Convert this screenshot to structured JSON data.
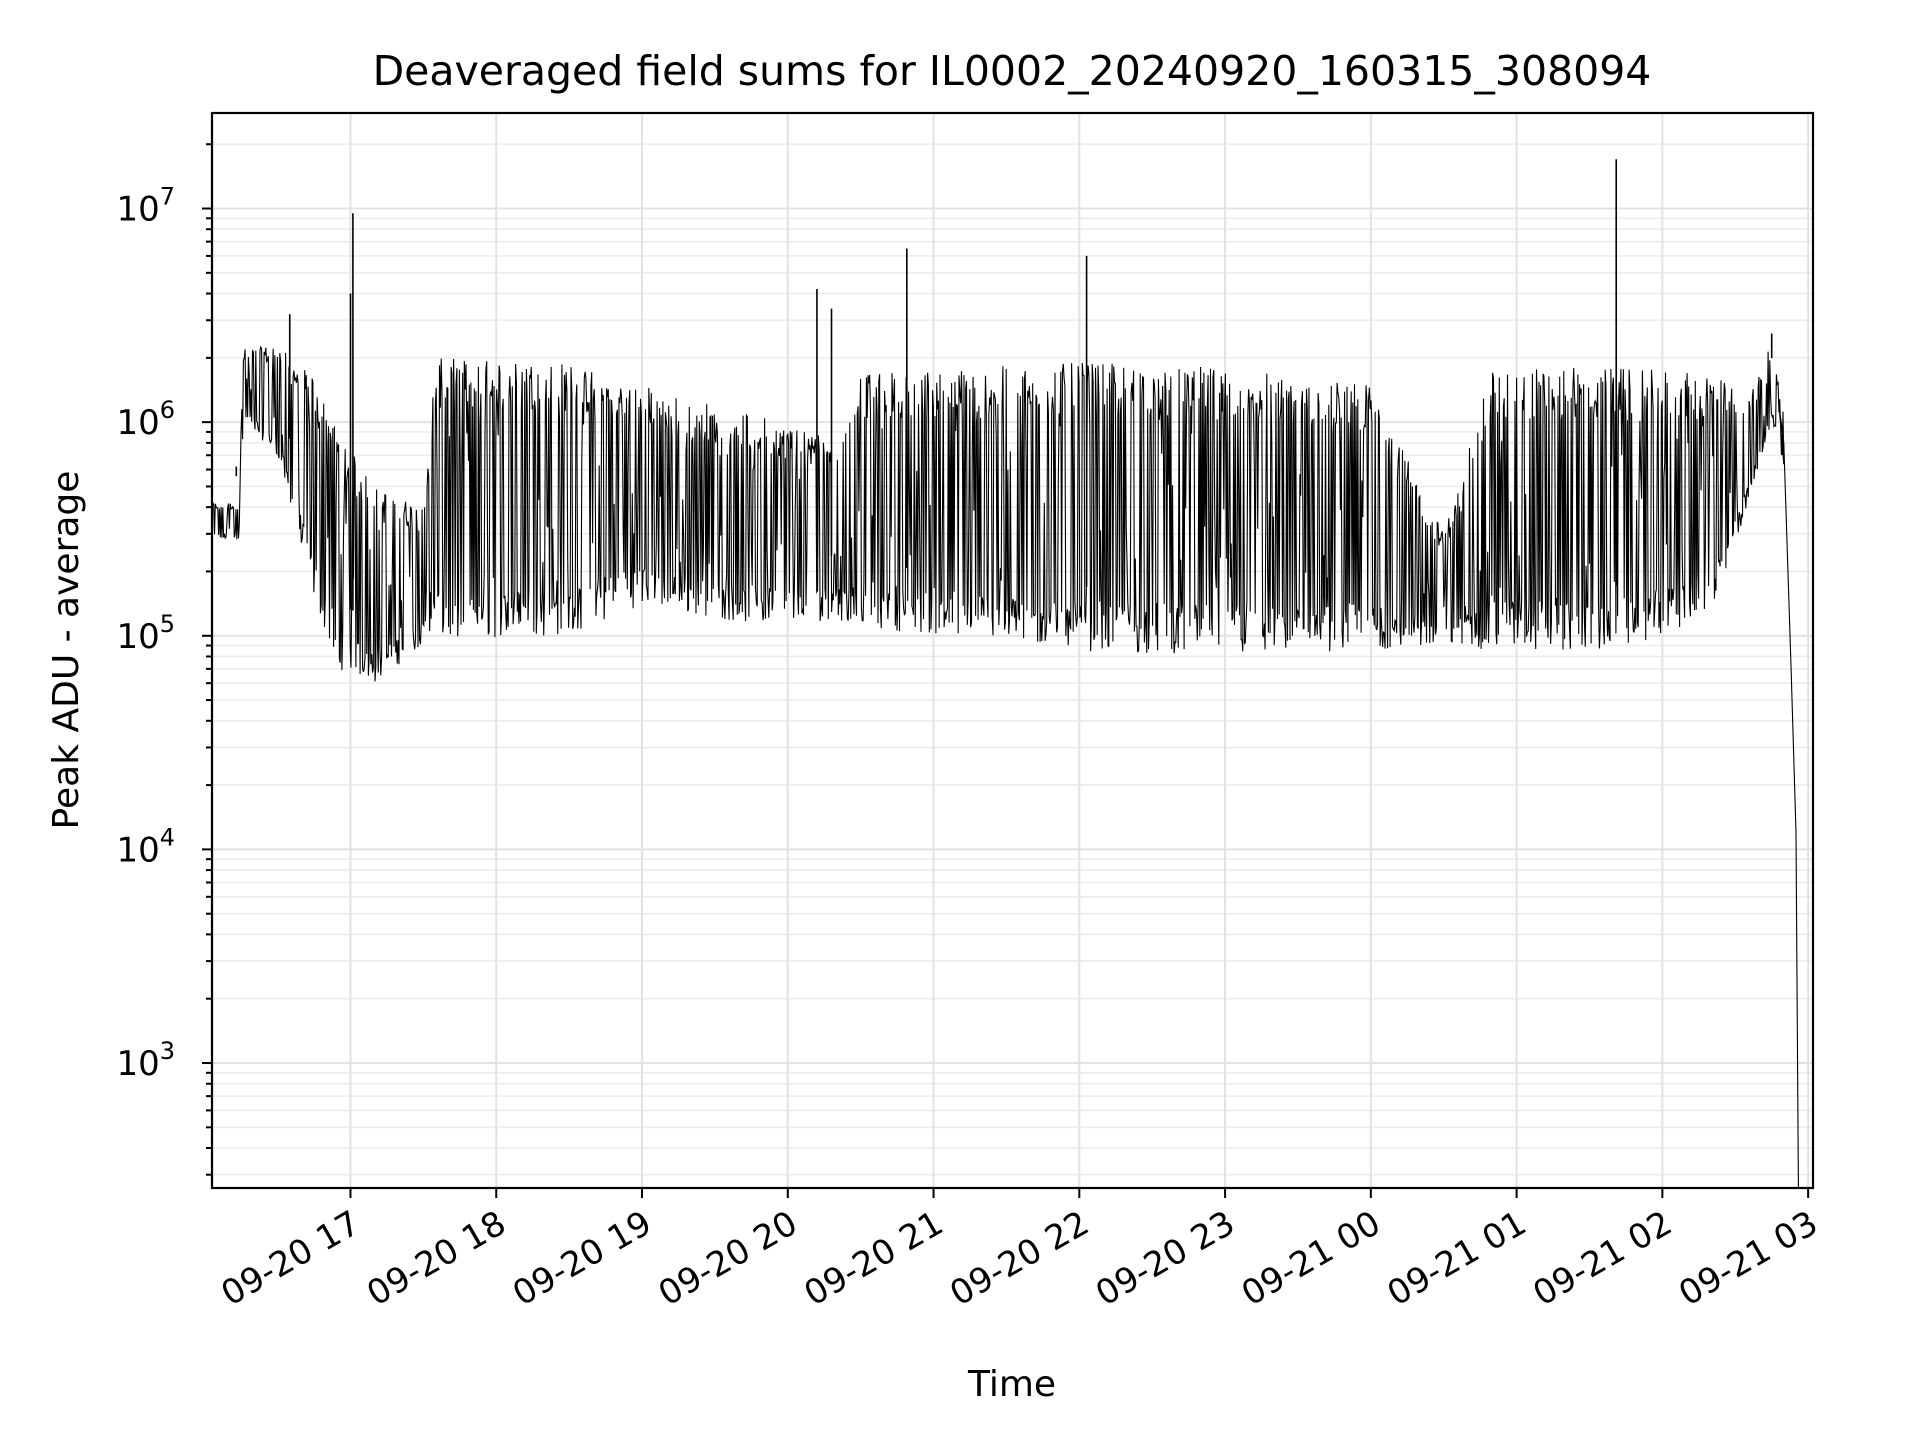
{
  "chart_data": {
    "type": "line",
    "title": "Deaveraged field sums for IL0002_20240920_160315_308094",
    "xlabel": "Time",
    "ylabel": "Peak ADU - average",
    "yscale": "log",
    "ylim": [
      260,
      28000000
    ],
    "xlim": [
      "2024-09-20 16:03",
      "2024-09-21 03:02"
    ],
    "grid": true,
    "x_tick_labels": [
      "09-20 17",
      "09-20 18",
      "09-20 19",
      "09-20 20",
      "09-20 21",
      "09-20 22",
      "09-20 23",
      "09-21 00",
      "09-21 01",
      "09-21 02",
      "09-21 03"
    ],
    "x_tick_times": [
      "2024-09-20 17:00",
      "2024-09-20 18:00",
      "2024-09-20 19:00",
      "2024-09-20 20:00",
      "2024-09-20 21:00",
      "2024-09-20 22:00",
      "2024-09-20 23:00",
      "2024-09-21 00:00",
      "2024-09-21 01:00",
      "2024-09-21 02:00",
      "2024-09-21 03:00"
    ],
    "y_ticks": [
      {
        "mantissa": "10",
        "exponent": "3",
        "value": 1000
      },
      {
        "mantissa": "10",
        "exponent": "4",
        "value": 10000
      },
      {
        "mantissa": "10",
        "exponent": "5",
        "value": 100000
      },
      {
        "mantissa": "10",
        "exponent": "6",
        "value": 1000000
      },
      {
        "mantissa": "10",
        "exponent": "7",
        "value": 10000000
      }
    ],
    "series": [
      {
        "color": "#000000",
        "envelope": [
          {
            "t": "2024-09-20 16:03",
            "low": 280000,
            "high": 420000
          },
          {
            "t": "2024-09-20 16:14",
            "low": 280000,
            "high": 420000
          },
          {
            "t": "2024-09-20 16:16",
            "low": 1000000,
            "high": 2200000
          },
          {
            "t": "2024-09-20 16:30",
            "low": 700000,
            "high": 2300000
          },
          {
            "t": "2024-09-20 16:45",
            "low": 150000,
            "high": 1600000
          },
          {
            "t": "2024-09-20 16:55",
            "low": 70000,
            "high": 900000
          },
          {
            "t": "2024-09-20 17:10",
            "low": 60000,
            "high": 500000
          },
          {
            "t": "2024-09-20 17:30",
            "low": 90000,
            "high": 400000
          },
          {
            "t": "2024-09-20 17:35",
            "low": 95000,
            "high": 2000000
          },
          {
            "t": "2024-09-20 18:30",
            "low": 100000,
            "high": 1900000
          },
          {
            "t": "2024-09-20 19:00",
            "low": 140000,
            "high": 1500000
          },
          {
            "t": "2024-09-20 19:30",
            "low": 120000,
            "high": 1200000
          },
          {
            "t": "2024-09-20 20:00",
            "low": 110000,
            "high": 1000000
          },
          {
            "t": "2024-09-20 20:20",
            "low": 120000,
            "high": 900000
          },
          {
            "t": "2024-09-20 20:30",
            "low": 110000,
            "high": 1700000
          },
          {
            "t": "2024-09-20 22:00",
            "low": 85000,
            "high": 1900000
          },
          {
            "t": "2024-09-20 23:00",
            "low": 80000,
            "high": 1800000
          },
          {
            "t": "2024-09-21 00:00",
            "low": 85000,
            "high": 1500000
          },
          {
            "t": "2024-09-21 00:30",
            "low": 90000,
            "high": 300000
          },
          {
            "t": "2024-09-21 00:50",
            "low": 85000,
            "high": 1800000
          },
          {
            "t": "2024-09-21 01:40",
            "low": 85000,
            "high": 1800000
          },
          {
            "t": "2024-09-21 02:20",
            "low": 120000,
            "high": 1700000
          },
          {
            "t": "2024-09-21 02:35",
            "low": 400000,
            "high": 1300000
          },
          {
            "t": "2024-09-21 02:45",
            "low": 1000000,
            "high": 2400000
          },
          {
            "t": "2024-09-21 02:50",
            "low": 600000,
            "high": 1100000
          }
        ],
        "spikes": [
          {
            "t": "2024-09-20 16:13",
            "y": 620000
          },
          {
            "t": "2024-09-20 16:35",
            "y": 3200000
          },
          {
            "t": "2024-09-20 17:00",
            "y": 4000000
          },
          {
            "t": "2024-09-20 17:01",
            "y": 9500000
          },
          {
            "t": "2024-09-20 20:12",
            "y": 4200000
          },
          {
            "t": "2024-09-20 20:18",
            "y": 3400000
          },
          {
            "t": "2024-09-20 20:49",
            "y": 6500000
          },
          {
            "t": "2024-09-20 22:03",
            "y": 6000000
          },
          {
            "t": "2024-09-21 01:41",
            "y": 17000000
          },
          {
            "t": "2024-09-21 02:45",
            "y": 2600000
          }
        ],
        "tail": [
          {
            "t": "2024-09-21 02:48",
            "y": 1200000
          },
          {
            "t": "2024-09-21 02:50",
            "y": 800000
          },
          {
            "t": "2024-09-21 02:53",
            "y": 70000
          },
          {
            "t": "2024-09-21 02:55",
            "y": 12000
          },
          {
            "t": "2024-09-21 02:56",
            "y": 260
          }
        ]
      }
    ]
  }
}
